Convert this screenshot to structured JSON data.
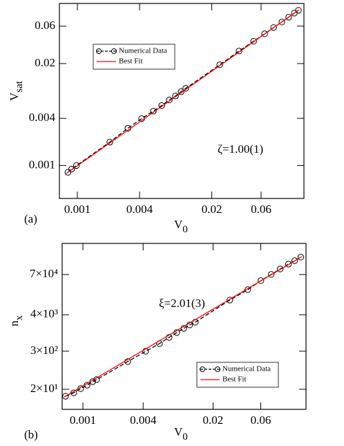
{
  "chart_data": [
    {
      "type": "line",
      "panel": "(a)",
      "xlabel": "V",
      "xlabel_sub": "0",
      "ylabel": "V",
      "ylabel_sub": "sat",
      "annotation": "ζ=1.00(1)",
      "xscale": "log",
      "yscale": "log",
      "xlim": [
        0.00067,
        0.156
      ],
      "ylim": [
        0.00038,
        0.117
      ],
      "xticks": [
        0.001,
        0.004,
        0.02,
        0.06
      ],
      "yticks": [
        0.001,
        0.004,
        0.02,
        0.06
      ],
      "legend": "upper left",
      "series": [
        {
          "name": "Numerical Data",
          "color": "#000000",
          "marker": "circle",
          "dash": true,
          "x": [
            0.00081,
            0.00088,
            0.00098,
            0.00206,
            0.00308,
            0.00419,
            0.00544,
            0.00655,
            0.00776,
            0.00891,
            0.0101,
            0.0112,
            0.0239,
            0.0367,
            0.0508,
            0.065,
            0.0794,
            0.0955,
            0.111,
            0.126,
            0.138
          ],
          "values": [
            0.00082,
            0.0009,
            0.001,
            0.00199,
            0.00299,
            0.00397,
            0.00495,
            0.00583,
            0.00686,
            0.00774,
            0.00875,
            0.00968,
            0.0193,
            0.0289,
            0.0385,
            0.048,
            0.0577,
            0.0678,
            0.0781,
            0.0882,
            0.0957
          ]
        },
        {
          "name": "Best Fit",
          "color": "#ff0000",
          "x": [
            0.00078,
            0.14
          ],
          "values": [
            0.00079,
            0.097
          ]
        }
      ]
    },
    {
      "type": "line",
      "panel": "(b)",
      "xlabel": "V",
      "xlabel_sub": "0",
      "ylabel": "n",
      "ylabel_sub": "x",
      "annotation": "ξ=2.01(3)",
      "xscale": "log",
      "yscale": "log",
      "xlim": [
        0.00062,
        0.17
      ],
      "ylim": [
        4.8,
        640000
      ],
      "xticks": [
        0.001,
        0.004,
        0.02,
        0.06
      ],
      "yticks": [
        {
          "value": 20,
          "label": "2×10¹"
        },
        {
          "value": 300,
          "label": "3×10²"
        },
        {
          "value": 4000,
          "label": "4×10³"
        },
        {
          "value": 70000,
          "label": "7×10⁴"
        }
      ],
      "legend": "lower right",
      "series": [
        {
          "name": "Numerical Data",
          "color": "#000000",
          "marker": "circle",
          "dash": true,
          "x": [
            0.00067,
            0.00081,
            0.00095,
            0.0011,
            0.00125,
            0.00137,
            0.0028,
            0.00424,
            0.00583,
            0.00728,
            0.00867,
            0.0102,
            0.0117,
            0.0133,
            0.0294,
            0.0445,
            0.0601,
            0.0763,
            0.0938,
            0.1135,
            0.131,
            0.151
          ],
          "values": [
            12.2,
            15.6,
            21,
            26.8,
            34.4,
            39.8,
            143,
            299,
            514,
            801,
            1130,
            1520,
            1940,
            2360,
            11400,
            23900,
            45300,
            70500,
            104000,
            147000,
            188000,
            241000
          ]
        },
        {
          "name": "Best Fit",
          "color": "#ff0000",
          "x": [
            0.00065,
            0.155
          ],
          "values": [
            11.5,
            250000
          ]
        }
      ]
    }
  ]
}
